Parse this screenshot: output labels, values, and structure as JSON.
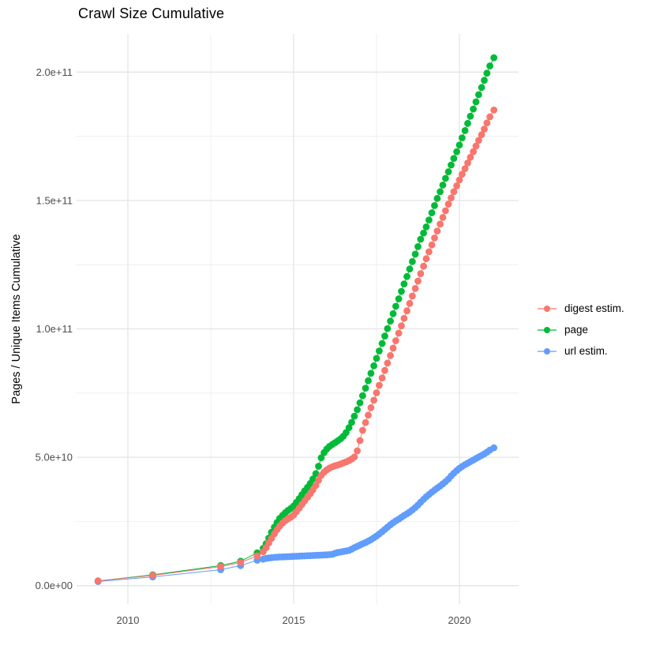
{
  "title": "Crawl Size Cumulative",
  "legend": {
    "items": [
      {
        "label": "digest estim.",
        "color": "#F8766D"
      },
      {
        "label": "page",
        "color": "#00BA38"
      },
      {
        "label": "url estim.",
        "color": "#619CFF"
      }
    ]
  },
  "chart_data": {
    "type": "scatter",
    "title": "Crawl Size Cumulative",
    "xlabel": "",
    "ylabel": "Pages / Unique Items Cumulative",
    "value_unit": "pages, values stored in billions (1e9)",
    "xlim": [
      2008.3,
      2021.8
    ],
    "ylim_e9": [
      -8,
      215
    ],
    "grid": true,
    "legend_position": "right",
    "x_ticks": [
      {
        "v": 2010,
        "label": "2010"
      },
      {
        "v": 2015,
        "label": "2015"
      },
      {
        "v": 2020,
        "label": "2020"
      }
    ],
    "x_minor": [
      2012.5,
      2017.5
    ],
    "y_ticks": [
      {
        "v": 0,
        "label": "0.0e+00"
      },
      {
        "v": 50,
        "label": "5.0e+10"
      },
      {
        "v": 100,
        "label": "1.0e+11"
      },
      {
        "v": 150,
        "label": "1.5e+11"
      },
      {
        "v": 200,
        "label": "2.0e+11"
      }
    ],
    "y_minor": [
      25,
      75,
      125,
      175
    ],
    "draw_order": [
      2,
      1,
      0
    ],
    "series": [
      {
        "name": "digest estim.",
        "color": "#F8766D",
        "points": [
          [
            2009.1,
            1.85
          ],
          [
            2010.75,
            4.0
          ],
          [
            2012.8,
            7.4
          ],
          [
            2013.4,
            9.0
          ],
          [
            2013.9,
            11.6
          ],
          [
            2014.08,
            13.2
          ],
          [
            2014.17,
            14.8
          ],
          [
            2014.25,
            16.6
          ],
          [
            2014.33,
            18.4
          ],
          [
            2014.42,
            20.2
          ],
          [
            2014.5,
            21.8
          ],
          [
            2014.58,
            23.2
          ],
          [
            2014.67,
            24.4
          ],
          [
            2014.75,
            25.3
          ],
          [
            2014.83,
            26.0
          ],
          [
            2014.92,
            26.7
          ],
          [
            2015.0,
            27.5
          ],
          [
            2015.08,
            28.8
          ],
          [
            2015.17,
            30.2
          ],
          [
            2015.25,
            31.6
          ],
          [
            2015.33,
            33.0
          ],
          [
            2015.42,
            34.4
          ],
          [
            2015.5,
            35.8
          ],
          [
            2015.58,
            37.3
          ],
          [
            2015.67,
            39.0
          ],
          [
            2015.75,
            41.0
          ],
          [
            2015.83,
            42.9
          ],
          [
            2015.92,
            44.2
          ],
          [
            2016.0,
            45.1
          ],
          [
            2016.08,
            45.8
          ],
          [
            2016.17,
            46.3
          ],
          [
            2016.25,
            46.7
          ],
          [
            2016.33,
            47.0
          ],
          [
            2016.42,
            47.4
          ],
          [
            2016.5,
            47.8
          ],
          [
            2016.58,
            48.2
          ],
          [
            2016.67,
            48.7
          ],
          [
            2016.75,
            49.3
          ],
          [
            2016.83,
            50.1
          ],
          [
            2016.92,
            52.5
          ],
          [
            2017.0,
            56.5
          ],
          [
            2017.08,
            60.5
          ],
          [
            2017.17,
            63.5
          ],
          [
            2017.25,
            66.4
          ],
          [
            2017.33,
            69.3
          ],
          [
            2017.42,
            72.2
          ],
          [
            2017.5,
            75.1
          ],
          [
            2017.58,
            78.0
          ],
          [
            2017.67,
            80.9
          ],
          [
            2017.75,
            83.8
          ],
          [
            2017.83,
            86.7
          ],
          [
            2017.92,
            89.6
          ],
          [
            2018.0,
            92.5
          ],
          [
            2018.08,
            95.4
          ],
          [
            2018.17,
            98.3
          ],
          [
            2018.25,
            101.2
          ],
          [
            2018.33,
            104.1
          ],
          [
            2018.42,
            107.0
          ],
          [
            2018.5,
            109.9
          ],
          [
            2018.58,
            112.8
          ],
          [
            2018.67,
            115.7
          ],
          [
            2018.75,
            118.6
          ],
          [
            2018.83,
            121.5
          ],
          [
            2018.92,
            124.4
          ],
          [
            2019.0,
            127.3
          ],
          [
            2019.08,
            130.0
          ],
          [
            2019.17,
            132.7
          ],
          [
            2019.25,
            135.4
          ],
          [
            2019.33,
            138.1
          ],
          [
            2019.42,
            140.8
          ],
          [
            2019.5,
            143.4
          ],
          [
            2019.58,
            146.0
          ],
          [
            2019.67,
            148.6
          ],
          [
            2019.75,
            151.0
          ],
          [
            2019.83,
            153.4
          ],
          [
            2019.92,
            155.7
          ],
          [
            2020.0,
            158.0
          ],
          [
            2020.08,
            160.2
          ],
          [
            2020.17,
            162.4
          ],
          [
            2020.25,
            164.6
          ],
          [
            2020.33,
            166.8
          ],
          [
            2020.42,
            169.0
          ],
          [
            2020.5,
            171.2
          ],
          [
            2020.58,
            173.4
          ],
          [
            2020.67,
            175.6
          ],
          [
            2020.75,
            177.8
          ],
          [
            2020.83,
            180.2
          ],
          [
            2020.92,
            182.6
          ],
          [
            2021.04,
            185.2
          ]
        ]
      },
      {
        "name": "page",
        "color": "#00BA38",
        "points": [
          [
            2009.1,
            1.85
          ],
          [
            2010.75,
            4.2
          ],
          [
            2012.8,
            7.8
          ],
          [
            2013.4,
            9.5
          ],
          [
            2013.9,
            12.8
          ],
          [
            2014.08,
            14.5
          ],
          [
            2014.17,
            16.3
          ],
          [
            2014.25,
            18.5
          ],
          [
            2014.33,
            20.8
          ],
          [
            2014.42,
            22.8
          ],
          [
            2014.5,
            24.6
          ],
          [
            2014.58,
            26.2
          ],
          [
            2014.67,
            27.4
          ],
          [
            2014.75,
            28.4
          ],
          [
            2014.83,
            29.3
          ],
          [
            2014.92,
            30.1
          ],
          [
            2015.0,
            31.0
          ],
          [
            2015.08,
            32.4
          ],
          [
            2015.17,
            33.9
          ],
          [
            2015.25,
            35.4
          ],
          [
            2015.33,
            36.9
          ],
          [
            2015.42,
            38.3
          ],
          [
            2015.5,
            39.8
          ],
          [
            2015.58,
            41.5
          ],
          [
            2015.67,
            43.6
          ],
          [
            2015.75,
            46.5
          ],
          [
            2015.83,
            49.8
          ],
          [
            2015.92,
            51.8
          ],
          [
            2016.0,
            53.2
          ],
          [
            2016.08,
            54.2
          ],
          [
            2016.17,
            55.0
          ],
          [
            2016.25,
            55.7
          ],
          [
            2016.33,
            56.4
          ],
          [
            2016.42,
            57.2
          ],
          [
            2016.5,
            58.2
          ],
          [
            2016.58,
            59.6
          ],
          [
            2016.67,
            61.5
          ],
          [
            2016.75,
            63.6
          ],
          [
            2016.83,
            66.0
          ],
          [
            2016.92,
            68.5
          ],
          [
            2017.0,
            71.2
          ],
          [
            2017.08,
            74.0
          ],
          [
            2017.17,
            76.9
          ],
          [
            2017.25,
            79.8
          ],
          [
            2017.33,
            82.7
          ],
          [
            2017.42,
            85.6
          ],
          [
            2017.5,
            88.5
          ],
          [
            2017.58,
            91.4
          ],
          [
            2017.67,
            94.3
          ],
          [
            2017.75,
            97.2
          ],
          [
            2017.83,
            100.1
          ],
          [
            2017.92,
            103.0
          ],
          [
            2018.0,
            105.9
          ],
          [
            2018.08,
            108.8
          ],
          [
            2018.17,
            111.7
          ],
          [
            2018.25,
            114.6
          ],
          [
            2018.33,
            117.5
          ],
          [
            2018.42,
            120.4
          ],
          [
            2018.5,
            123.3
          ],
          [
            2018.58,
            126.2
          ],
          [
            2018.67,
            129.1
          ],
          [
            2018.75,
            132.0
          ],
          [
            2018.83,
            134.9
          ],
          [
            2018.92,
            137.3
          ],
          [
            2019.0,
            139.7
          ],
          [
            2019.08,
            142.4
          ],
          [
            2019.17,
            145.2
          ],
          [
            2019.25,
            148.0
          ],
          [
            2019.33,
            150.8
          ],
          [
            2019.42,
            153.4
          ],
          [
            2019.5,
            156.0
          ],
          [
            2019.58,
            158.6
          ],
          [
            2019.67,
            161.2
          ],
          [
            2019.75,
            163.8
          ],
          [
            2019.83,
            166.4
          ],
          [
            2019.92,
            169.0
          ],
          [
            2020.0,
            171.6
          ],
          [
            2020.08,
            174.4
          ],
          [
            2020.17,
            177.2
          ],
          [
            2020.25,
            180.0
          ],
          [
            2020.33,
            182.8
          ],
          [
            2020.42,
            185.6
          ],
          [
            2020.5,
            188.4
          ],
          [
            2020.58,
            191.2
          ],
          [
            2020.67,
            194.0
          ],
          [
            2020.75,
            196.8
          ],
          [
            2020.83,
            199.6
          ],
          [
            2020.92,
            202.4
          ],
          [
            2021.04,
            205.6
          ]
        ]
      },
      {
        "name": "url estim.",
        "color": "#619CFF",
        "points": [
          [
            2009.1,
            1.6
          ],
          [
            2010.75,
            3.4
          ],
          [
            2012.8,
            6.2
          ],
          [
            2013.4,
            7.8
          ],
          [
            2013.9,
            9.9
          ],
          [
            2014.08,
            10.3
          ],
          [
            2014.17,
            10.6
          ],
          [
            2014.25,
            10.8
          ],
          [
            2014.33,
            10.9
          ],
          [
            2014.42,
            11.0
          ],
          [
            2014.5,
            11.1
          ],
          [
            2014.58,
            11.15
          ],
          [
            2014.67,
            11.2
          ],
          [
            2014.75,
            11.25
          ],
          [
            2014.83,
            11.3
          ],
          [
            2014.92,
            11.35
          ],
          [
            2015.0,
            11.4
          ],
          [
            2015.08,
            11.45
          ],
          [
            2015.17,
            11.5
          ],
          [
            2015.25,
            11.55
          ],
          [
            2015.33,
            11.6
          ],
          [
            2015.42,
            11.65
          ],
          [
            2015.5,
            11.7
          ],
          [
            2015.58,
            11.75
          ],
          [
            2015.67,
            11.8
          ],
          [
            2015.75,
            11.85
          ],
          [
            2015.83,
            11.9
          ],
          [
            2015.92,
            11.95
          ],
          [
            2016.0,
            12.0
          ],
          [
            2016.08,
            12.1
          ],
          [
            2016.17,
            12.2
          ],
          [
            2016.25,
            12.6
          ],
          [
            2016.33,
            12.9
          ],
          [
            2016.42,
            13.1
          ],
          [
            2016.5,
            13.3
          ],
          [
            2016.58,
            13.5
          ],
          [
            2016.67,
            13.7
          ],
          [
            2016.75,
            14.2
          ],
          [
            2016.83,
            14.8
          ],
          [
            2016.92,
            15.3
          ],
          [
            2017.0,
            15.8
          ],
          [
            2017.08,
            16.3
          ],
          [
            2017.17,
            16.8
          ],
          [
            2017.25,
            17.3
          ],
          [
            2017.33,
            17.9
          ],
          [
            2017.42,
            18.6
          ],
          [
            2017.5,
            19.3
          ],
          [
            2017.58,
            20.1
          ],
          [
            2017.67,
            21.0
          ],
          [
            2017.75,
            21.9
          ],
          [
            2017.83,
            22.8
          ],
          [
            2017.92,
            23.7
          ],
          [
            2018.0,
            24.5
          ],
          [
            2018.08,
            25.2
          ],
          [
            2018.17,
            25.9
          ],
          [
            2018.25,
            26.6
          ],
          [
            2018.33,
            27.3
          ],
          [
            2018.42,
            28.0
          ],
          [
            2018.5,
            28.7
          ],
          [
            2018.58,
            29.5
          ],
          [
            2018.67,
            30.4
          ],
          [
            2018.75,
            31.4
          ],
          [
            2018.83,
            32.5
          ],
          [
            2018.92,
            33.6
          ],
          [
            2019.0,
            34.6
          ],
          [
            2019.08,
            35.5
          ],
          [
            2019.17,
            36.4
          ],
          [
            2019.25,
            37.2
          ],
          [
            2019.33,
            38.0
          ],
          [
            2019.42,
            38.8
          ],
          [
            2019.5,
            39.6
          ],
          [
            2019.58,
            40.5
          ],
          [
            2019.67,
            41.5
          ],
          [
            2019.75,
            42.7
          ],
          [
            2019.83,
            43.8
          ],
          [
            2019.92,
            44.8
          ],
          [
            2020.0,
            45.7
          ],
          [
            2020.08,
            46.4
          ],
          [
            2020.17,
            47.1
          ],
          [
            2020.25,
            47.7
          ],
          [
            2020.33,
            48.3
          ],
          [
            2020.42,
            48.9
          ],
          [
            2020.5,
            49.5
          ],
          [
            2020.58,
            50.1
          ],
          [
            2020.67,
            50.7
          ],
          [
            2020.75,
            51.3
          ],
          [
            2020.83,
            52.0
          ],
          [
            2020.92,
            52.8
          ],
          [
            2021.04,
            53.7
          ]
        ]
      }
    ]
  }
}
